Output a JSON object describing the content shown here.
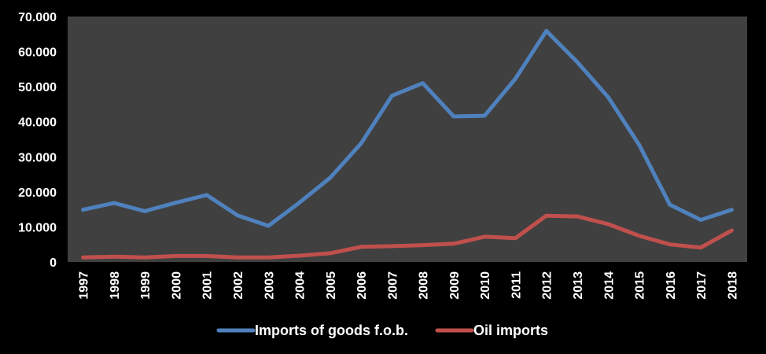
{
  "chart_data": {
    "type": "line",
    "title": "",
    "xlabel": "",
    "ylabel": "",
    "ylim": [
      0,
      70000
    ],
    "yticks": [
      {
        "value": 0,
        "label": "0"
      },
      {
        "value": 10000,
        "label": "10.000"
      },
      {
        "value": 20000,
        "label": "20.000"
      },
      {
        "value": 30000,
        "label": "30.000"
      },
      {
        "value": 40000,
        "label": "40.000"
      },
      {
        "value": 50000,
        "label": "50.000"
      },
      {
        "value": 60000,
        "label": "60.000"
      },
      {
        "value": 70000,
        "label": "70.000"
      }
    ],
    "categories": [
      "1997",
      "1998",
      "1999",
      "2000",
      "2001",
      "2002",
      "2003",
      "2004",
      "2005",
      "2006",
      "2007",
      "2008",
      "2009",
      "2010",
      "2011",
      "2012",
      "2013",
      "2014",
      "2015",
      "2016",
      "2017",
      "2018"
    ],
    "series": [
      {
        "name": "Imports of goods f.o.b.",
        "color": "#4f81bd",
        "values": [
          14900,
          16800,
          14500,
          16900,
          19100,
          13300,
          10300,
          16900,
          24000,
          33800,
          47400,
          51000,
          41500,
          41700,
          52300,
          65900,
          57000,
          47000,
          33500,
          16300,
          12000,
          14900
        ]
      },
      {
        "name": "Oil imports",
        "color": "#c0504d",
        "values": [
          1300,
          1500,
          1300,
          1700,
          1700,
          1300,
          1300,
          1800,
          2500,
          4300,
          4500,
          4800,
          5200,
          7200,
          6800,
          13200,
          13000,
          10800,
          7500,
          5000,
          4100,
          9000
        ]
      }
    ],
    "grid": false,
    "legend_position": "bottom",
    "plot_background": "#404040"
  }
}
